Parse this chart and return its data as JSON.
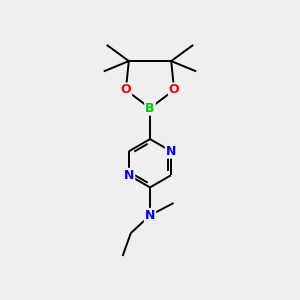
{
  "background_color": "#efefef",
  "bond_color": "#000000",
  "atom_colors": {
    "B": "#00cc00",
    "O": "#ff0000",
    "N": "#0000ff",
    "C": "#000000"
  },
  "figsize": [
    3.0,
    3.0
  ],
  "dpi": 100
}
